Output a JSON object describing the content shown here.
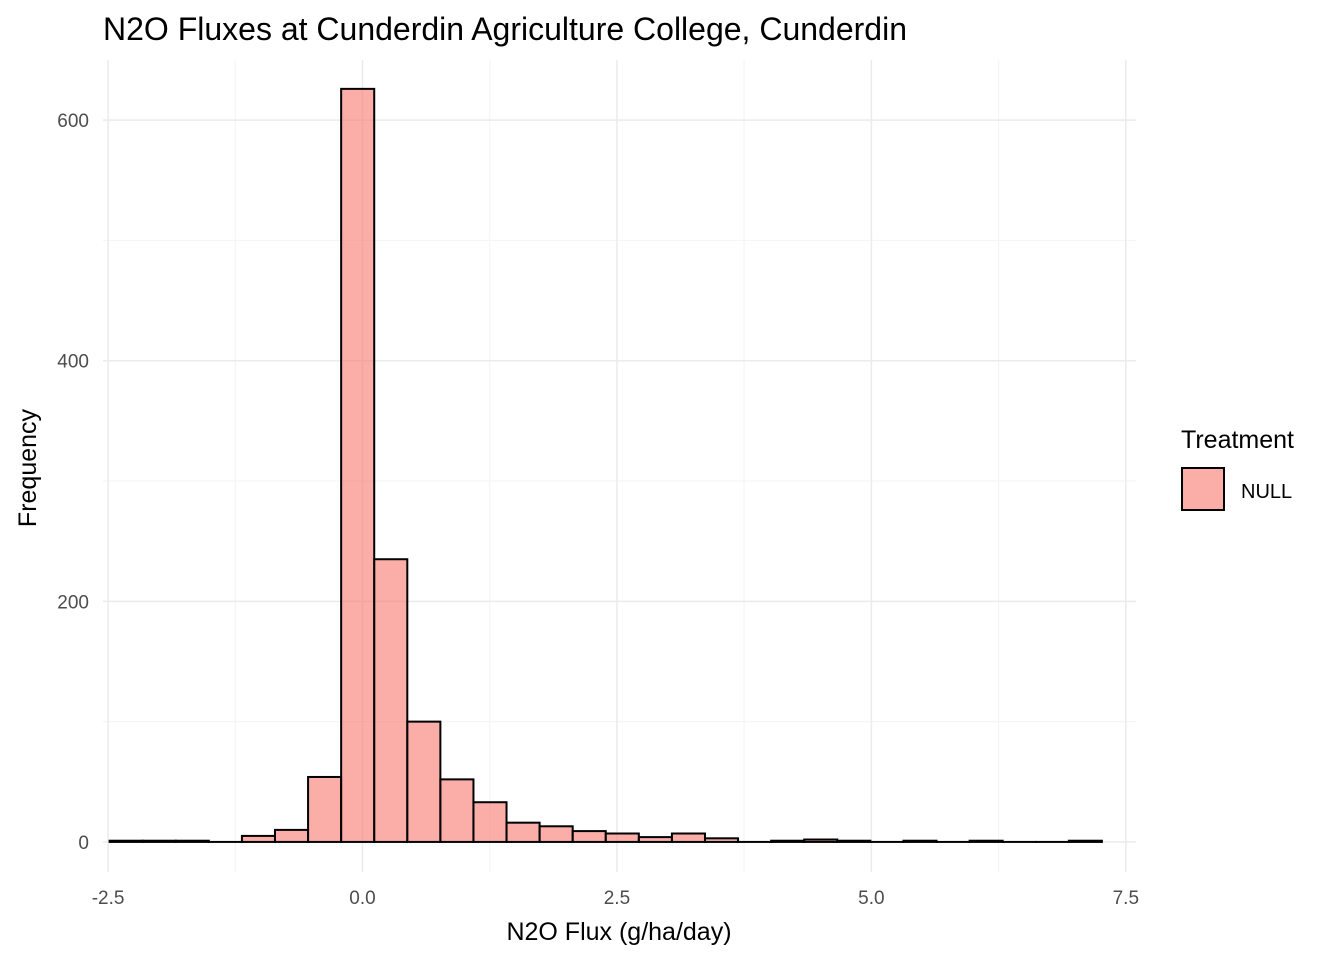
{
  "chart_data": {
    "type": "bar",
    "subtype": "histogram",
    "title": "N2O Fluxes at Cunderdin Agriculture College, Cunderdin",
    "xlabel": "N2O Flux (g/ha/day)",
    "ylabel": "Frequency",
    "xlim": [
      -2.55,
      7.6
    ],
    "ylim": [
      -25,
      650
    ],
    "x_ticks": [
      -2.5,
      0.0,
      2.5,
      5.0,
      7.5
    ],
    "x_tick_labels": [
      "-2.5",
      "0.0",
      "2.5",
      "5.0",
      "7.5"
    ],
    "y_ticks": [
      0,
      200,
      400,
      600
    ],
    "y_tick_labels": [
      "0",
      "200",
      "400",
      "600"
    ],
    "grid": true,
    "legend_position": "right",
    "legend_title": "Treatment",
    "bin_width": 0.325,
    "bin_start": -2.485,
    "bins": [
      {
        "x0": -2.485,
        "x1": -2.16,
        "count": 1
      },
      {
        "x0": -2.16,
        "x1": -1.835,
        "count": 1
      },
      {
        "x0": -1.835,
        "x1": -1.51,
        "count": 1
      },
      {
        "x0": -1.51,
        "x1": -1.185,
        "count": 0
      },
      {
        "x0": -1.185,
        "x1": -0.86,
        "count": 5
      },
      {
        "x0": -0.86,
        "x1": -0.535,
        "count": 10
      },
      {
        "x0": -0.535,
        "x1": -0.21,
        "count": 54
      },
      {
        "x0": -0.21,
        "x1": 0.115,
        "count": 626
      },
      {
        "x0": 0.115,
        "x1": 0.44,
        "count": 235
      },
      {
        "x0": 0.44,
        "x1": 0.765,
        "count": 100
      },
      {
        "x0": 0.765,
        "x1": 1.09,
        "count": 52
      },
      {
        "x0": 1.09,
        "x1": 1.415,
        "count": 33
      },
      {
        "x0": 1.415,
        "x1": 1.74,
        "count": 16
      },
      {
        "x0": 1.74,
        "x1": 2.065,
        "count": 13
      },
      {
        "x0": 2.065,
        "x1": 2.39,
        "count": 9
      },
      {
        "x0": 2.39,
        "x1": 2.715,
        "count": 7
      },
      {
        "x0": 2.715,
        "x1": 3.04,
        "count": 4
      },
      {
        "x0": 3.04,
        "x1": 3.365,
        "count": 7
      },
      {
        "x0": 3.365,
        "x1": 3.69,
        "count": 3
      },
      {
        "x0": 3.69,
        "x1": 4.015,
        "count": 0
      },
      {
        "x0": 4.015,
        "x1": 4.34,
        "count": 1
      },
      {
        "x0": 4.34,
        "x1": 4.665,
        "count": 2
      },
      {
        "x0": 4.665,
        "x1": 4.99,
        "count": 1
      },
      {
        "x0": 4.99,
        "x1": 5.315,
        "count": 0
      },
      {
        "x0": 5.315,
        "x1": 5.64,
        "count": 1
      },
      {
        "x0": 5.64,
        "x1": 5.965,
        "count": 0
      },
      {
        "x0": 5.965,
        "x1": 6.29,
        "count": 1
      },
      {
        "x0": 6.29,
        "x1": 6.615,
        "count": 0
      },
      {
        "x0": 6.615,
        "x1": 6.94,
        "count": 0
      },
      {
        "x0": 6.94,
        "x1": 7.265,
        "count": 1
      }
    ],
    "series": [
      {
        "name": "NULL",
        "fill_color": "#F8766D",
        "fill_opacity": 0.6,
        "stroke_color": "#000000"
      }
    ]
  },
  "colors": {
    "background": "#ffffff",
    "grid_major": "#ebebeb",
    "grid_minor": "#f5f5f5",
    "tick_text": "#4d4d4d",
    "bar_fill": "#F8766D",
    "bar_stroke": "#000000"
  }
}
